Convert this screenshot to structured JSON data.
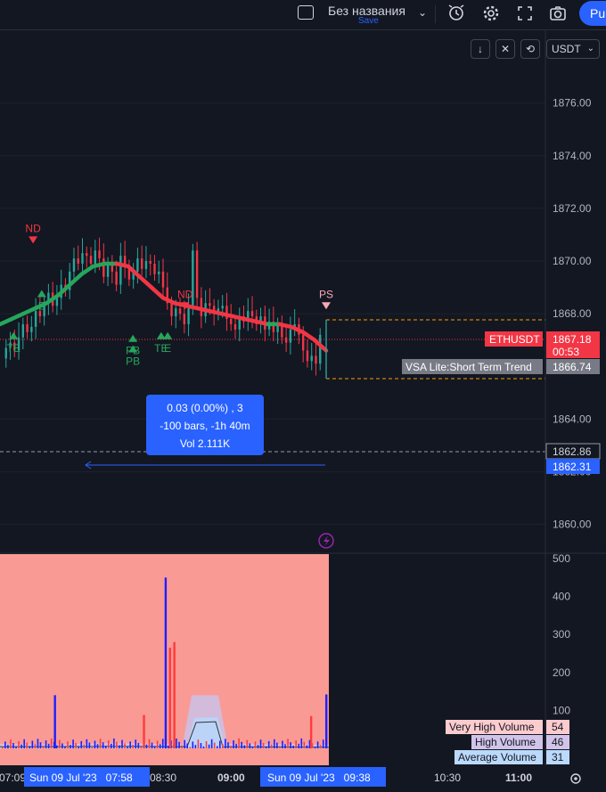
{
  "toolbar": {
    "layout_icon": "layout-square-icon",
    "title": "Без названия",
    "save_label": "Save",
    "publish_label": "Pu",
    "icons": [
      "chevron-down-icon",
      "alert-clock-icon",
      "gear-icon",
      "fullscreen-icon",
      "camera-icon"
    ]
  },
  "chart_controls": {
    "icons": [
      "arrow-down-icon",
      "collapse-icon",
      "refresh-icon"
    ],
    "currency": "USDT"
  },
  "chart_data": [
    {
      "type": "candlestick",
      "symbol": "ETHUSDT",
      "y_ticks": [
        "1876.00",
        "1874.00",
        "1872.00",
        "1870.00",
        "1868.00",
        "1864.00",
        "1862.00",
        "1860.00"
      ],
      "ylim": [
        1858.9,
        1878.8
      ],
      "x_ticks": [
        "07:09",
        "08:30",
        "09:00",
        "10:30",
        "11:00"
      ],
      "price_badges": {
        "symbol_label": "ETHUSDT",
        "last_price": "1867.18",
        "countdown": "00:53",
        "trend_label": "VSA Lite:Short Term Trend",
        "trend_value": "1866.74",
        "level1": "1862.86",
        "level2": "1862.31"
      },
      "price_path": [
        1866.3,
        1866.7,
        1866.9,
        1866.6,
        1867.1,
        1867.6,
        1867.3,
        1867.5,
        1868.1,
        1867.9,
        1868.4,
        1868.8,
        1868.3,
        1868.6,
        1869.1,
        1868.9,
        1869.6,
        1870.1,
        1869.9,
        1870.3,
        1870.2,
        1869.9,
        1870.4,
        1870.1,
        1869.4,
        1869.9,
        1869.6,
        1869.1,
        1870.2,
        1869.8,
        1869.3,
        1869.6,
        1870.1,
        1869.7,
        1870.0,
        1869.9,
        1869.5,
        1869.6,
        1869.0,
        1868.4,
        1867.9,
        1868.2,
        1868.0,
        1867.6,
        1868.2,
        1870.4,
        1868.6,
        1867.9,
        1868.4,
        1868.3,
        1868.0,
        1868.2,
        1868.3,
        1867.8,
        1867.6,
        1867.4,
        1867.9,
        1867.7,
        1868.1,
        1867.9,
        1867.6,
        1867.9,
        1867.4,
        1867.7,
        1867.3,
        1867.6,
        1867.1,
        1866.9,
        1867.4,
        1867.6,
        1867.2,
        1866.6,
        1866.2,
        1866.4,
        1866.1,
        1867.2
      ],
      "trend_path": [
        1867.6,
        1867.8,
        1868.0,
        1868.2,
        1868.4,
        1868.7,
        1869.1,
        1869.5,
        1869.8,
        1869.9,
        1869.9,
        1869.8,
        1869.4,
        1869.0,
        1868.6,
        1868.4,
        1868.3,
        1868.2,
        1868.1,
        1868.0,
        1867.9,
        1867.8,
        1867.7,
        1867.6,
        1867.6,
        1867.5,
        1867.3,
        1867.0,
        1866.6
      ],
      "markers": [
        {
          "label": "ND",
          "side": "above",
          "x": "07:23",
          "y": 1870.8
        },
        {
          "label": "TE",
          "side": "below",
          "x": "07:14",
          "y": 1867.2
        },
        {
          "label": "E",
          "side": "below",
          "x": "07:27",
          "y": 1868.8
        },
        {
          "label": "PB",
          "side": "below",
          "x": "08:09",
          "y": 1867.1
        },
        {
          "label": "PB",
          "side": "below",
          "x": "08:09",
          "y": 1866.7
        },
        {
          "label": "TE",
          "side": "below",
          "x": "08:22",
          "y": 1867.2
        },
        {
          "label": "E",
          "side": "below",
          "x": "08:25",
          "y": 1867.2
        },
        {
          "label": "ND",
          "side": "above",
          "x": "08:33",
          "y": 1868.3
        },
        {
          "label": "PS",
          "side": "above",
          "x": "09:38",
          "y": 1868.3
        }
      ],
      "measure_tooltip": {
        "line1": "0.03 (0.00%) , 3",
        "line2": "-100 bars, -1h 40m",
        "line3": "Vol 2.111K"
      }
    },
    {
      "type": "bar",
      "title": "Volume",
      "y_ticks": [
        "500",
        "400",
        "300",
        "200",
        "100"
      ],
      "ylim": [
        0,
        500
      ],
      "legend": [
        {
          "name": "Very High Volume",
          "value": "54",
          "color": "#fccbcd"
        },
        {
          "name": "High Volume",
          "value": "46",
          "color": "#d1c4e9"
        },
        {
          "name": "Average Volume",
          "value": "31",
          "color": "#bbd9fb"
        }
      ],
      "spikes": [
        {
          "x": "07:33",
          "value": 140,
          "color": "#1f1fff"
        },
        {
          "x": "08:14",
          "value": 88,
          "color": "#ff3b3b"
        },
        {
          "x": "08:24",
          "value": 450,
          "color": "#1f1fff"
        },
        {
          "x": "08:26",
          "value": 265,
          "color": "#ff3b3b"
        },
        {
          "x": "08:28",
          "value": 280,
          "color": "#ff3b3b"
        },
        {
          "x": "09:31",
          "value": 85,
          "color": "#ff3b3b"
        },
        {
          "x": "09:38",
          "value": 142,
          "color": "#1f1fff"
        }
      ]
    }
  ],
  "time_axis": {
    "start_time": "07:09",
    "range_left_label": "Sun 09 Jul '23   07:58",
    "range_right_label": "Sun 09 Jul '23   09:38",
    "settings_icon": "gear-icon"
  }
}
